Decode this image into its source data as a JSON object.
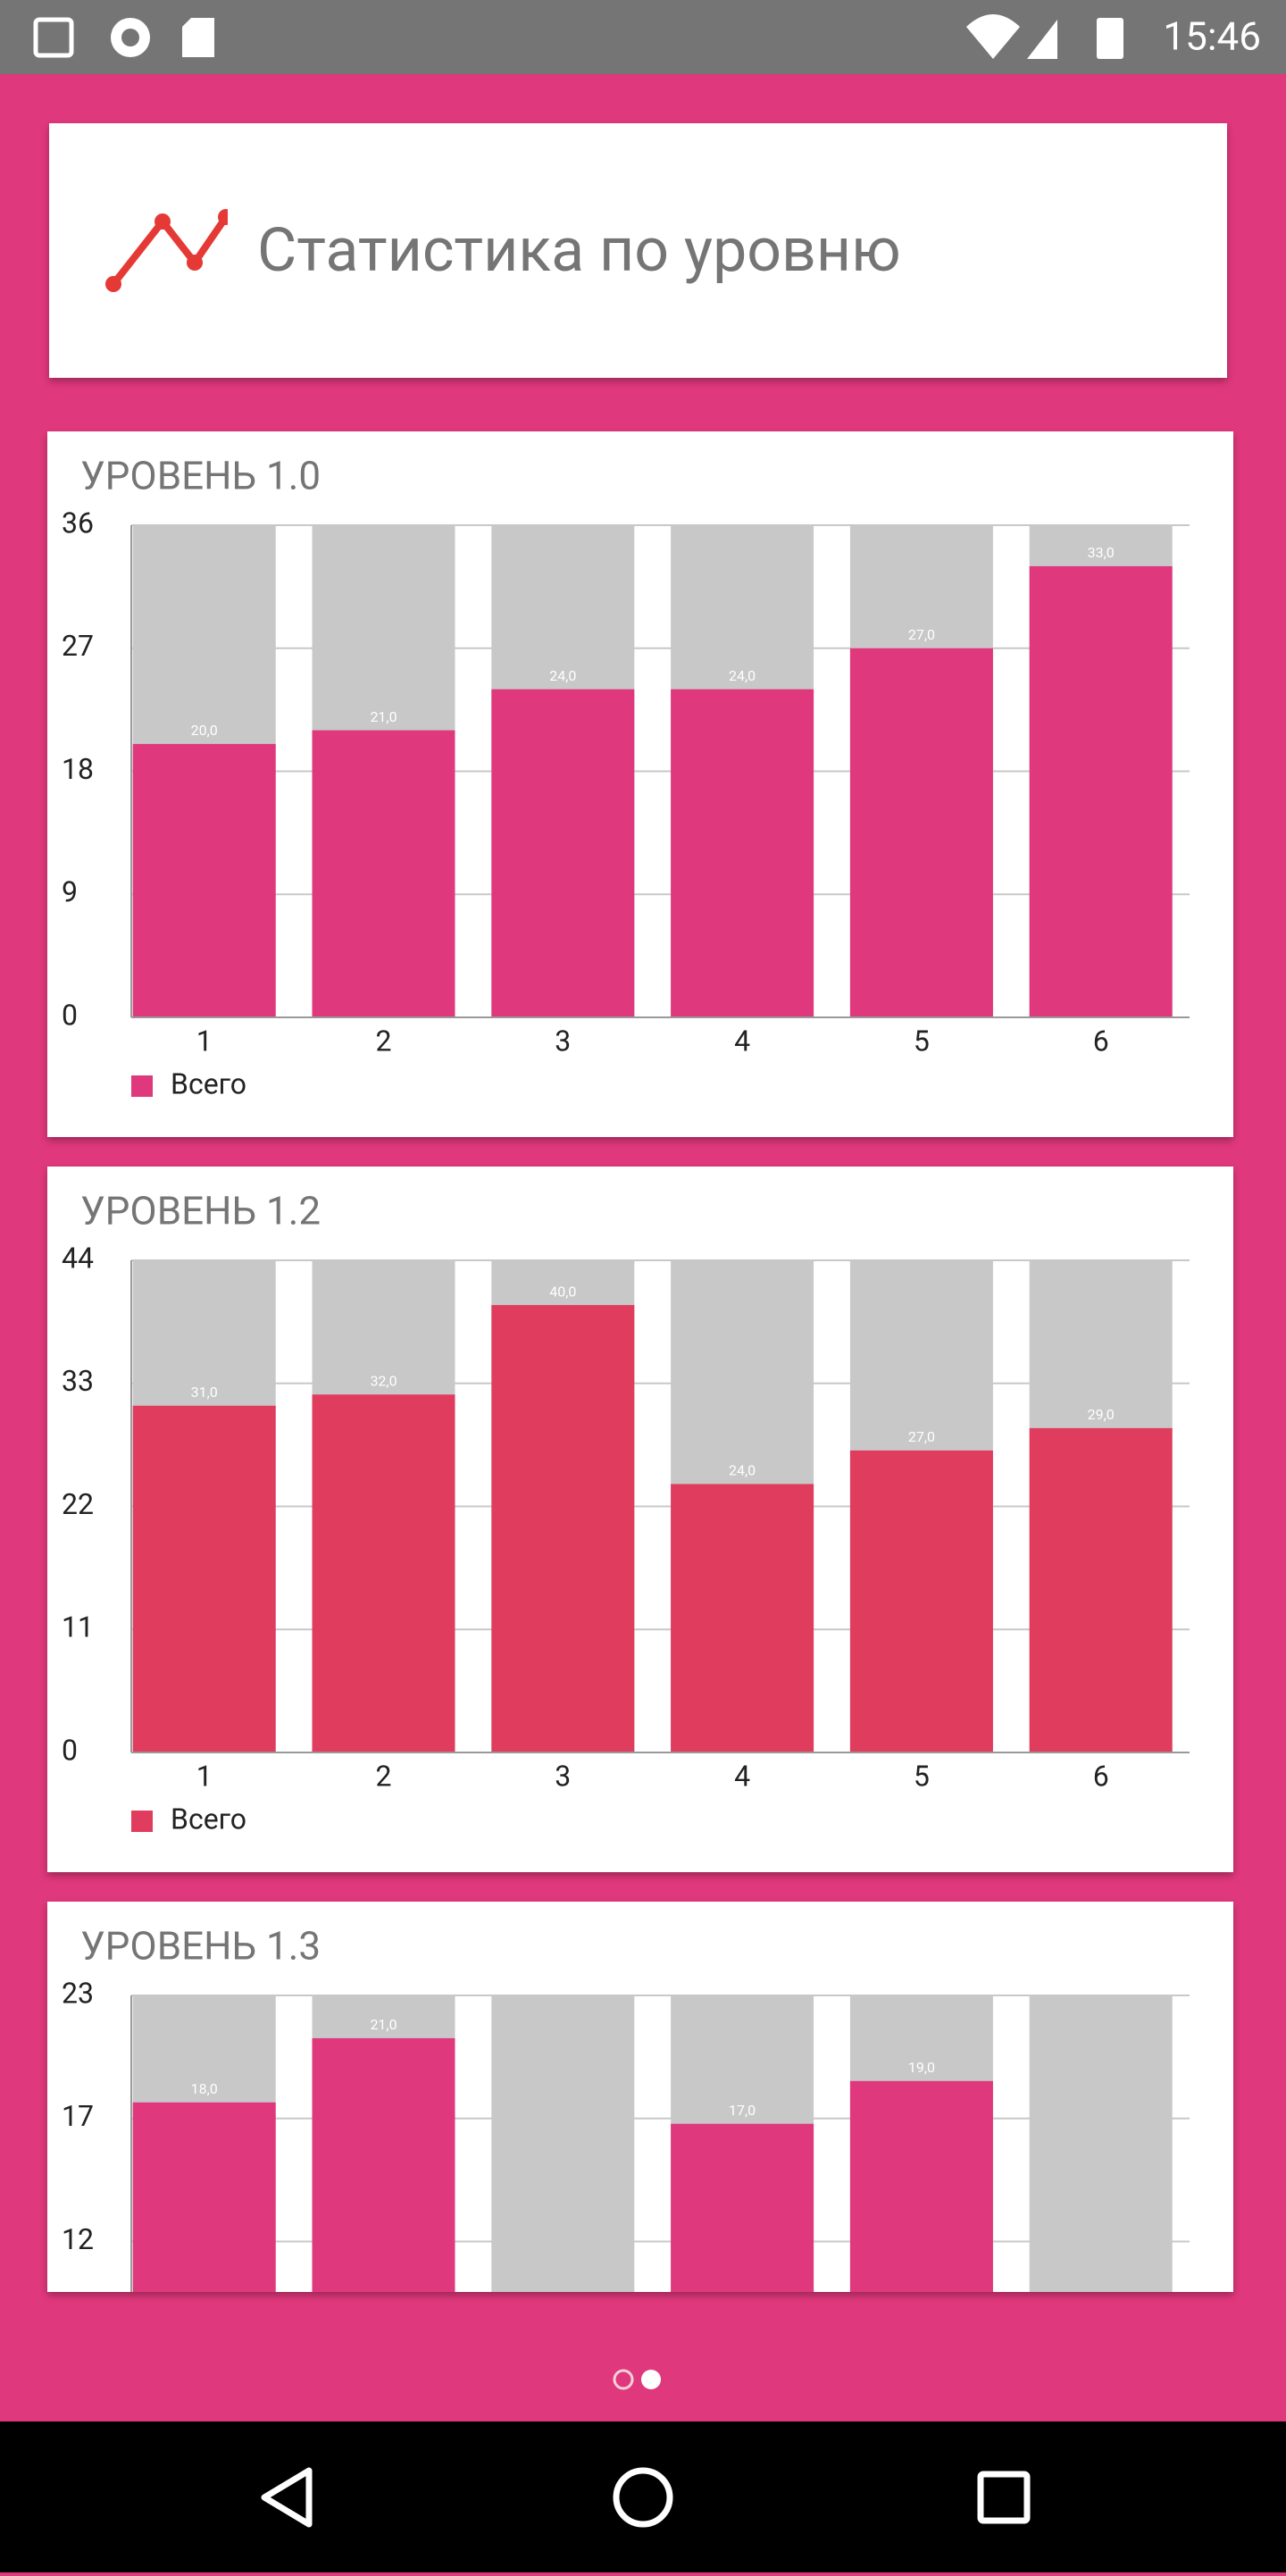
{
  "status_bar": {
    "time": "15:46"
  },
  "header": {
    "title": "Статистика по уровню"
  },
  "chart_data": [
    {
      "type": "bar",
      "title": "УРОВЕНЬ 1.0",
      "categories": [
        "1",
        "2",
        "3",
        "4",
        "5",
        "6"
      ],
      "series": [
        {
          "name": "Всего",
          "color": "#e0387c",
          "values": [
            20,
            21,
            24,
            24,
            27,
            33
          ]
        }
      ],
      "value_labels": [
        "20,0",
        "21,0",
        "24,0",
        "24,0",
        "27,0",
        "33,0"
      ],
      "ylim": [
        0,
        36
      ],
      "yticks": [
        0,
        9,
        18,
        27,
        36
      ],
      "grid": true
    },
    {
      "type": "bar",
      "title": "УРОВЕНЬ 1.2",
      "categories": [
        "1",
        "2",
        "3",
        "4",
        "5",
        "6"
      ],
      "series": [
        {
          "name": "Всего",
          "color": "#e03c5e",
          "values": [
            31,
            32,
            40,
            24,
            27,
            29
          ]
        }
      ],
      "value_labels": [
        "31,0",
        "32,0",
        "40,0",
        "24,0",
        "27,0",
        "29,0"
      ],
      "ylim": [
        0,
        44
      ],
      "yticks": [
        0,
        11,
        22,
        33,
        44
      ],
      "grid": true
    },
    {
      "type": "bar",
      "title": "УРОВЕНЬ 1.3",
      "color": "#e0387c",
      "values": [
        18,
        21,
        null,
        17,
        19,
        null
      ],
      "value_labels": [
        "18,0",
        "21,0",
        null,
        "17,0",
        "19,0",
        null
      ],
      "ylim": [
        0,
        23
      ],
      "yticks": [
        {
          "value": 11.5,
          "label": "12"
        },
        {
          "value": 17.25,
          "label": "17"
        },
        23
      ],
      "grid": true
    }
  ]
}
